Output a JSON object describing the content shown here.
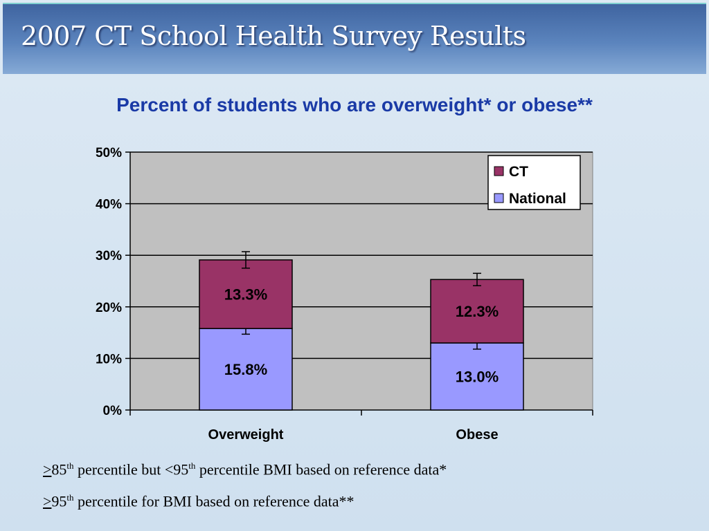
{
  "slide": {
    "title": "2007 CT School Health Survey Results"
  },
  "colors": {
    "ct": "#993366",
    "national": "#9999ff",
    "plot_bg": "#c0c0c0",
    "title_text": "#1a3aa6"
  },
  "chart_data": {
    "type": "bar",
    "stacked": true,
    "title": "Percent of students who are overweight* or obese**",
    "categories": [
      "Overweight",
      "Obese"
    ],
    "series": [
      {
        "name": "National",
        "values": [
          15.8,
          13.0
        ],
        "labels": [
          "15.8%",
          "13.0%"
        ],
        "error": [
          1.1,
          1.2
        ]
      },
      {
        "name": "CT",
        "values": [
          13.3,
          12.3
        ],
        "labels": [
          "13.3%",
          "12.3%"
        ],
        "error": [
          1.6,
          1.2
        ]
      }
    ],
    "ylim": [
      0,
      50
    ],
    "yticks": [
      0,
      10,
      20,
      30,
      40,
      50
    ],
    "ytick_labels": [
      "0%",
      "10%",
      "20%",
      "30%",
      "40%",
      "50%"
    ],
    "grid": true,
    "legend_position": "top-right",
    "legend_order": [
      "CT",
      "National"
    ]
  },
  "footnotes": [
    {
      "prefix": ">",
      "number": "85",
      "sup": "th",
      "text": " percentile but <95",
      "sup2": "th",
      "text2": " percentile BMI based on reference data*"
    },
    {
      "prefix": ">",
      "number": "95",
      "sup": "th",
      "text": " percentile for BMI based on reference data**"
    }
  ]
}
